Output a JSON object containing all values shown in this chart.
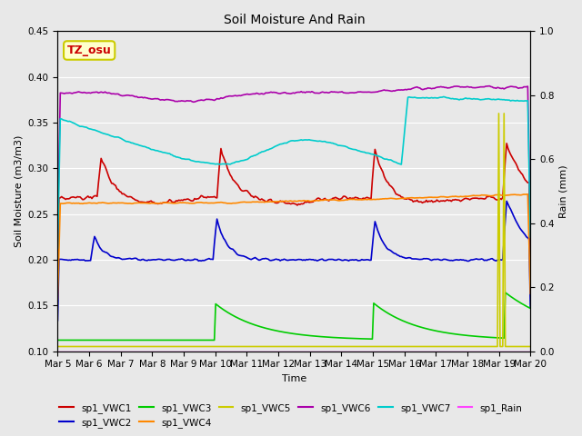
{
  "title": "Soil Moisture And Rain",
  "xlabel": "Time",
  "ylabel_left": "Soil Moisture (m3/m3)",
  "ylabel_right": "Rain (mm)",
  "annotation_text": "TZ_osu",
  "annotation_color": "#cc0000",
  "annotation_bg": "#ffffcc",
  "annotation_border": "#cccc00",
  "ylim_left": [
    0.1,
    0.45
  ],
  "ylim_right": [
    0.0,
    1.0
  ],
  "xtick_labels": [
    "Mar 5",
    "Mar 6",
    "Mar 7",
    "Mar 8",
    "Mar 9",
    "Mar 10",
    "Mar 11",
    "Mar 12",
    "Mar 13",
    "Mar 14",
    "Mar 15",
    "Mar 16",
    "Mar 17",
    "Mar 18",
    "Mar 19",
    "Mar 20"
  ],
  "ytick_left": [
    0.1,
    0.15,
    0.2,
    0.25,
    0.3,
    0.35,
    0.4,
    0.45
  ],
  "ytick_right": [
    0.0,
    0.2,
    0.4,
    0.6,
    0.8,
    1.0
  ],
  "bg_color": "#e8e8e8",
  "plot_bg_color": "#e8e8e8",
  "grid_color": "#ffffff",
  "series": {
    "sp1_VWC1": {
      "color": "#cc0000",
      "lw": 1.2
    },
    "sp1_VWC2": {
      "color": "#0000cc",
      "lw": 1.2
    },
    "sp1_VWC3": {
      "color": "#00cc00",
      "lw": 1.2
    },
    "sp1_VWC4": {
      "color": "#ff8800",
      "lw": 1.2
    },
    "sp1_VWC5": {
      "color": "#cccc00",
      "lw": 1.2
    },
    "sp1_VWC6": {
      "color": "#aa00aa",
      "lw": 1.2
    },
    "sp1_VWC7": {
      "color": "#00cccc",
      "lw": 1.2
    },
    "sp1_Rain": {
      "color": "#ff44ff",
      "lw": 1.0
    }
  }
}
